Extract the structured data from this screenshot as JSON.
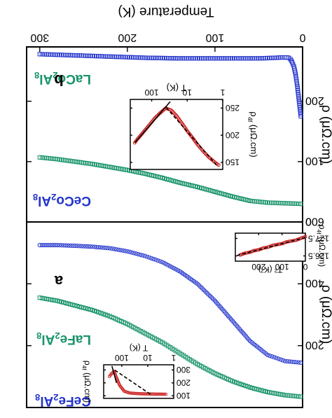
{
  "chart_data": [
    {
      "type": "scatter",
      "panel": "b",
      "xlabel": "Temperature (K)",
      "ylabel": "ρ (μΩ.cm)",
      "x_ticks": [
        0,
        100,
        200,
        300
      ],
      "y_ticks": [
        0,
        100,
        200
      ],
      "xlim": [
        0,
        315
      ],
      "ylim": [
        0,
        290
      ],
      "orientation": "rotated 180 degrees",
      "series": [
        {
          "name": "LaCo2Al8",
          "color": "#17936a",
          "marker": "open-square",
          "x": [
            2,
            20,
            40,
            60,
            80,
            100,
            120,
            140,
            160,
            180,
            200,
            220,
            240,
            260,
            280,
            300
          ],
          "y": [
            30,
            31,
            32,
            35,
            42,
            50,
            58,
            65,
            73,
            80,
            86,
            91,
            96,
            100,
            104,
            107
          ]
        },
        {
          "name": "CeCo2Al8",
          "color": "#2233cc",
          "marker": "open-square",
          "x": [
            2,
            4,
            6,
            8,
            10,
            12,
            14,
            16,
            18,
            20,
            25,
            30,
            40,
            50,
            60,
            80,
            100,
            120,
            140,
            160,
            180,
            200,
            220,
            240,
            260,
            280,
            300
          ],
          "y": [
            175,
            200,
            225,
            245,
            258,
            265,
            270,
            272,
            272.5,
            272.5,
            272.5,
            272,
            271.5,
            271,
            271,
            271,
            271,
            271,
            271,
            271.5,
            272,
            273,
            274,
            275,
            276,
            277,
            278
          ]
        }
      ]
    },
    {
      "type": "scatter",
      "panel": "b-inset",
      "xlabel": "T (K)",
      "ylabel": "ρ_4f (μΩ.cm)",
      "x_ticks": [
        1,
        10,
        100
      ],
      "y_ticks": [
        150,
        200,
        250
      ],
      "xscale": "log",
      "xlim": [
        1,
        400
      ],
      "ylim": [
        137,
        266
      ],
      "series": [
        {
          "name": "",
          "color": "#cc2222",
          "marker": "open-circle",
          "x": [
            1.3,
            1.8,
            2.5,
            3.5,
            5,
            7,
            10,
            14,
            20,
            28,
            40,
            60,
            80,
            120,
            180,
            250,
            300
          ],
          "y": [
            145,
            152,
            160,
            170,
            182,
            195,
            208,
            222,
            236,
            246,
            250,
            240,
            232,
            218,
            204,
            193,
            186
          ]
        }
      ]
    },
    {
      "type": "scatter",
      "panel": "a",
      "xlabel": "",
      "ylabel": "ρ (μΩ.cm)",
      "y_ticks": [
        200,
        400,
        600
      ],
      "xlim": [
        0,
        315
      ],
      "ylim": [
        0,
        600
      ],
      "series": [
        {
          "name": "LaFe2Al8",
          "color": "#17936a",
          "marker": "open-square",
          "x": [
            2,
            20,
            40,
            60,
            80,
            100,
            120,
            140,
            160,
            180,
            200,
            220,
            240,
            260,
            280,
            300
          ],
          "y": [
            35,
            40,
            50,
            65,
            85,
            110,
            140,
            175,
            210,
            240,
            270,
            295,
            315,
            330,
            345,
            355
          ]
        },
        {
          "name": "CeFe2Al8",
          "color": "#2233cc",
          "marker": "open-circle",
          "x": [
            2,
            20,
            40,
            60,
            80,
            100,
            120,
            140,
            160,
            180,
            200,
            220,
            240,
            260,
            280,
            300
          ],
          "y": [
            145,
            150,
            170,
            215,
            280,
            345,
            400,
            440,
            470,
            490,
            505,
            515,
            520,
            523,
            525,
            525
          ]
        }
      ]
    },
    {
      "type": "scatter",
      "panel": "a-inset-bottom",
      "xlabel": "T (K)",
      "ylabel": "ρ_4f (μΩ.cm)",
      "x_ticks": [
        1,
        10,
        100
      ],
      "y_ticks": [
        100,
        200,
        300
      ],
      "xscale": "log",
      "xlim": [
        1,
        500
      ],
      "ylim": [
        80,
        340
      ],
      "series": [
        {
          "name": "",
          "color": "#cc2222",
          "marker": "open-circle",
          "x": [
            2,
            3,
            5,
            8,
            12,
            20,
            30,
            50,
            80,
            120,
            160,
            200,
            250,
            300
          ],
          "y": [
            112,
            113,
            113,
            114,
            115,
            116,
            118,
            122,
            135,
            180,
            240,
            290,
            270,
            250
          ]
        }
      ]
    },
    {
      "type": "scatter",
      "panel": "a-inset-top",
      "xlabel": "T² (K²)",
      "ylabel": "ρ_4f (μΩ.cm)",
      "x_ticks": [
        0,
        100,
        200
      ],
      "y_ticks": [
        126.5,
        127.5
      ],
      "xlim": [
        0,
        300
      ],
      "ylim": [
        126.2,
        127.8
      ],
      "series": [
        {
          "name": "",
          "color": "#cc2222",
          "marker": "open-circle",
          "x": [
            0,
            20,
            40,
            60,
            80,
            100,
            120,
            140,
            160,
            180,
            200,
            220,
            240,
            260,
            280
          ],
          "y": [
            127.6,
            127.5,
            127.4,
            127.35,
            127.3,
            127.2,
            127.15,
            127.1,
            127.0,
            126.95,
            126.85,
            126.8,
            126.7,
            126.65,
            126.55
          ]
        }
      ]
    }
  ],
  "panels": {
    "b_letter": "b",
    "a_letter": "a"
  }
}
